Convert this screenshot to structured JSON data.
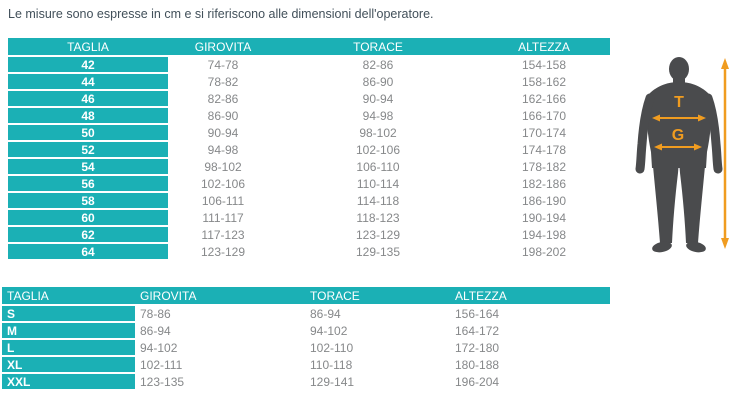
{
  "intro": "Le misure sono espresse in cm e si riferiscono alle dimensioni dell'operatore.",
  "colors": {
    "accent_teal": "#1bb0b5",
    "row_text_gray": "#86888a",
    "intro_text": "#42505a",
    "silhouette_gray": "#4a4b4d",
    "measure_orange": "#f09c20"
  },
  "numeric_table": {
    "headers": [
      "TAGLIA",
      "GIROVITA",
      "TORACE",
      "ALTEZZA"
    ],
    "rows": [
      [
        "42",
        "74-78",
        "82-86",
        "154-158"
      ],
      [
        "44",
        "78-82",
        "86-90",
        "158-162"
      ],
      [
        "46",
        "82-86",
        "90-94",
        "162-166"
      ],
      [
        "48",
        "86-90",
        "94-98",
        "166-170"
      ],
      [
        "50",
        "90-94",
        "98-102",
        "170-174"
      ],
      [
        "52",
        "94-98",
        "102-106",
        "174-178"
      ],
      [
        "54",
        "98-102",
        "106-110",
        "178-182"
      ],
      [
        "56",
        "102-106",
        "110-114",
        "182-186"
      ],
      [
        "58",
        "106-111",
        "114-118",
        "186-190"
      ],
      [
        "60",
        "111-117",
        "118-123",
        "190-194"
      ],
      [
        "62",
        "117-123",
        "123-129",
        "194-198"
      ],
      [
        "64",
        "123-129",
        "129-135",
        "198-202"
      ]
    ]
  },
  "letter_table": {
    "headers": [
      "TAGLIA",
      "GIROVITA",
      "TORACE",
      "ALTEZZA"
    ],
    "rows": [
      [
        "S",
        "78-86",
        "86-94",
        "156-164"
      ],
      [
        "M",
        "86-94",
        "94-102",
        "164-172"
      ],
      [
        "L",
        "94-102",
        "102-110",
        "172-180"
      ],
      [
        "XL",
        "102-111",
        "110-118",
        "180-188"
      ],
      [
        "XXL",
        "123-135",
        "129-141",
        "196-204"
      ]
    ]
  },
  "figure": {
    "torace_label": "T",
    "girovita_label": "G"
  }
}
